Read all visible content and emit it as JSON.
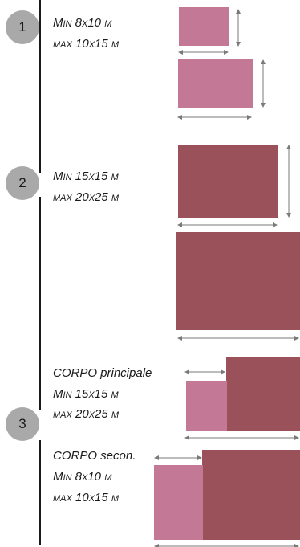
{
  "colors": {
    "pink": "#c37996",
    "maroon": "#9b5159",
    "circle": "#a9a9a9",
    "arrow": "#7a7a7a"
  },
  "steps": [
    {
      "number": "1",
      "lines": [
        "Min 8x10 m",
        "max 10x15 m"
      ]
    },
    {
      "number": "2",
      "lines": [
        "Min 15x15 m",
        "max 20x25 m"
      ]
    },
    {
      "number": "3"
    }
  ],
  "step3_texts": {
    "corpo_principale": "CORPO principale",
    "principale_min": "Min 15x15 m",
    "principale_max": "max 20x25 m",
    "corpo_secon": "CORPO secon.",
    "secon_min": "Min 8x10 m",
    "secon_max": "max 10x15 m"
  }
}
